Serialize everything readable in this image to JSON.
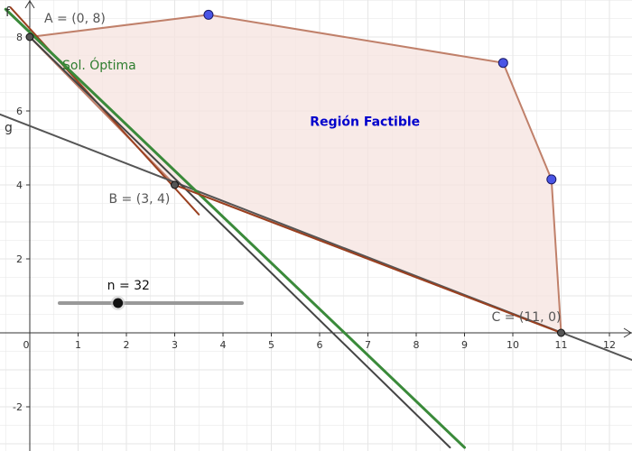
{
  "app": {
    "type": "geogebra-graphics-view",
    "background": "#ffffff"
  },
  "axes": {
    "x_ticks": [
      "0",
      "1",
      "2",
      "3",
      "4",
      "5",
      "6",
      "7",
      "8",
      "9",
      "10",
      "11",
      "12"
    ],
    "y_ticks": [
      "-2",
      "2",
      "4",
      "6",
      "8"
    ],
    "xlim": [
      -0.6,
      12.5
    ],
    "ylim": [
      -3.1,
      8.9
    ],
    "grid": true,
    "grid_color": "#e6e6e6",
    "axis_color": "#333333"
  },
  "region": {
    "label": "Región Factible",
    "label_color": "#0000cc",
    "fill": "#f6e3df",
    "stroke": "#c0806a",
    "vertices": [
      [
        0,
        8
      ],
      [
        3.7,
        8.6
      ],
      [
        9.8,
        7.3
      ],
      [
        10.8,
        4.15
      ],
      [
        11,
        0
      ],
      [
        3,
        4
      ]
    ]
  },
  "points": [
    {
      "name": "A",
      "label": "A = (0, 8)",
      "x": 0,
      "y": 8,
      "color": "#555555"
    },
    {
      "name": "B",
      "label": "B = (3, 4)",
      "x": 3,
      "y": 4,
      "color": "#555555"
    },
    {
      "name": "C",
      "label": "C = (11, 0)",
      "x": 11,
      "y": 0,
      "color": "#555555"
    },
    {
      "name": "P1",
      "label": "",
      "x": 3.7,
      "y": 8.6,
      "color": "#4a55e6"
    },
    {
      "name": "P2",
      "label": "",
      "x": 9.8,
      "y": 7.3,
      "color": "#4a55e6"
    },
    {
      "name": "P3",
      "label": "",
      "x": 10.8,
      "y": 4.15,
      "color": "#4a55e6"
    }
  ],
  "lines": [
    {
      "name": "f",
      "label": "f",
      "x1": -0.4,
      "y1": 8.8,
      "x2": 3.5,
      "y2": 3.2,
      "color": "#9a4020",
      "width": 2
    },
    {
      "name": "g",
      "label": "g",
      "x1": -0.8,
      "y1": 6.0,
      "x2": 12.5,
      "y2": -0.75,
      "color": "#555555",
      "width": 2
    },
    {
      "name": "f-dark",
      "label": "",
      "x1": 0,
      "y1": 8,
      "x2": 8.7,
      "y2": -3.1,
      "color": "#444444",
      "width": 2
    },
    {
      "name": "sol-optima",
      "label": "Sol. Óptima",
      "x1": -0.5,
      "y1": 8.75,
      "x2": 9.0,
      "y2": -3.1,
      "color": "#3a8a3a",
      "width": 3
    },
    {
      "name": "segment-BC",
      "label": "",
      "x1": 3,
      "y1": 4,
      "x2": 11,
      "y2": 0,
      "color": "#9a4020",
      "width": 2
    }
  ],
  "slider": {
    "label": "n = 32",
    "value": 32,
    "min": 0,
    "max": 100
  }
}
